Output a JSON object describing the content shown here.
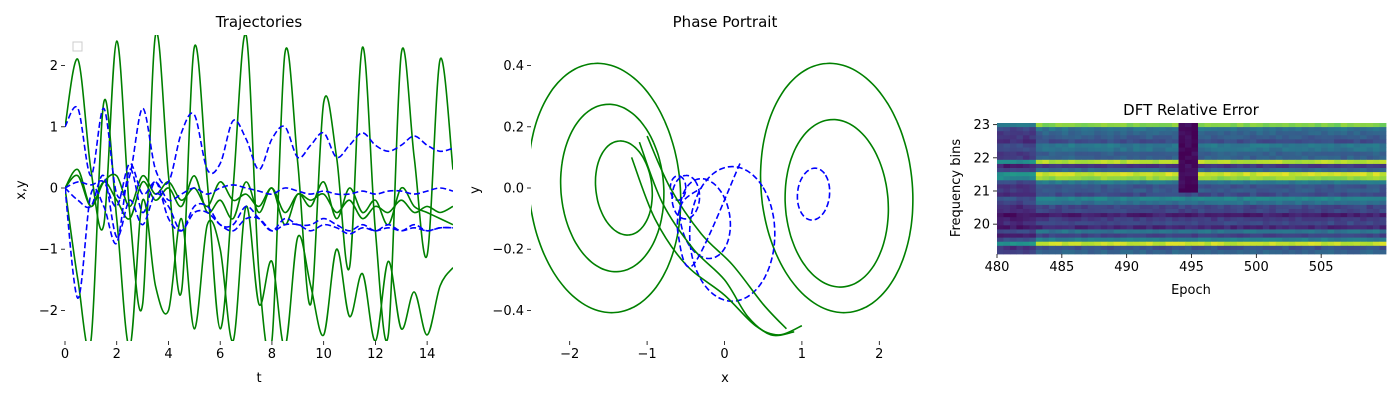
{
  "chart_data": [
    {
      "type": "line",
      "title": "Trajectories",
      "xlabel": "t",
      "ylabel": "x,y",
      "xlim": [
        0,
        15
      ],
      "ylim": [
        -2.5,
        2.5
      ],
      "xticks": [
        "0",
        "2",
        "4",
        "6",
        "8",
        "10",
        "12",
        "14"
      ],
      "yticks": [
        "−2",
        "−1",
        "0",
        "1",
        "2"
      ],
      "legend": "upper-left (empty)",
      "grid": false,
      "series_style": [
        {
          "color": "#008000",
          "dash": "solid",
          "count": 4
        },
        {
          "color": "#0000ff",
          "dash": "dashed",
          "count": 4
        }
      ],
      "series": [
        {
          "color": "#008000",
          "x": [
            0,
            0.5,
            1,
            1.5,
            2,
            2.5,
            3,
            3.5,
            4,
            4.5,
            5,
            5.5,
            6,
            6.5,
            7,
            7.5,
            8,
            8.5,
            9,
            9.5,
            10,
            10.5,
            11,
            11.5,
            12,
            12.5,
            13,
            13.5,
            14,
            14.5,
            15
          ],
          "values": [
            1.0,
            2.1,
            0.3,
            -0.6,
            2.4,
            -0.4,
            -1.9,
            2.5,
            0.2,
            -1.7,
            2.3,
            0.1,
            -2.3,
            0.0,
            2.5,
            -1.4,
            -2.5,
            2.2,
            0.4,
            -1.9,
            1.4,
            0.5,
            -1.3,
            2.3,
            -0.7,
            -2.4,
            2.2,
            0.5,
            -1.1,
            2.1,
            0.3
          ]
        },
        {
          "color": "#008000",
          "x": [
            0,
            0.5,
            1,
            1.5,
            2,
            2.5,
            3,
            3.5,
            4,
            4.5,
            5,
            5.5,
            6,
            6.5,
            7,
            7.5,
            8,
            8.5,
            9,
            9.5,
            10,
            10.5,
            11,
            11.5,
            12,
            12.5,
            13,
            13.5,
            14,
            14.5,
            15
          ],
          "values": [
            0.0,
            0.3,
            -0.3,
            0.1,
            -0.2,
            -0.5,
            0.1,
            -0.2,
            0.0,
            -0.3,
            0.2,
            -0.4,
            -0.2,
            -0.5,
            0.1,
            -0.4,
            0.0,
            -0.6,
            -0.1,
            -0.3,
            0.1,
            -0.5,
            0.0,
            -0.4,
            -0.2,
            -0.6,
            0.0,
            -0.3,
            -0.4,
            -0.5,
            -0.6
          ]
        },
        {
          "color": "#008000",
          "x": [
            0,
            0.5,
            1,
            1.5,
            2,
            2.5,
            3,
            3.5,
            4,
            4.5,
            5,
            5.5,
            6,
            6.5,
            7,
            7.5,
            8,
            8.5,
            9,
            9.5,
            10,
            10.5,
            11,
            11.5,
            12,
            12.5,
            13,
            13.5,
            14,
            14.5,
            15
          ],
          "values": [
            0.0,
            0.2,
            -0.3,
            0.1,
            0.2,
            -0.3,
            0.2,
            -0.1,
            0.1,
            -0.2,
            0.0,
            -0.3,
            0.1,
            -0.2,
            -0.1,
            -0.3,
            0.0,
            -0.4,
            -0.1,
            -0.2,
            -0.1,
            -0.4,
            -0.2,
            -0.5,
            -0.3,
            -0.4,
            -0.2,
            -0.4,
            -0.3,
            -0.4,
            -0.3
          ]
        },
        {
          "color": "#008000",
          "x": [
            0,
            0.5,
            1,
            1.5,
            2,
            2.5,
            3,
            3.5,
            4,
            4.5,
            5,
            5.5,
            6,
            6.5,
            7,
            7.5,
            8,
            8.5,
            9,
            9.5,
            10,
            10.5,
            11,
            11.5,
            12,
            12.5,
            13,
            13.5,
            14,
            14.5,
            15
          ],
          "values": [
            0.0,
            -1.5,
            -2.5,
            1.4,
            -0.5,
            -2.6,
            -0.2,
            -1.6,
            -2.0,
            -0.5,
            -2.3,
            -0.6,
            -1.0,
            -2.5,
            -0.3,
            -1.9,
            -1.2,
            -2.6,
            -0.8,
            -1.6,
            -2.4,
            -1.0,
            -2.1,
            -1.4,
            -2.5,
            -1.2,
            -2.3,
            -1.7,
            -2.4,
            -1.6,
            -1.3
          ]
        },
        {
          "color": "#0000ff",
          "x": [
            0,
            0.5,
            1,
            1.5,
            2,
            2.5,
            3,
            3.5,
            4,
            4.5,
            5,
            5.5,
            6,
            6.5,
            7,
            7.5,
            8,
            8.5,
            9,
            9.5,
            10,
            10.5,
            11,
            11.5,
            12,
            12.5,
            13,
            13.5,
            14,
            14.5,
            15
          ],
          "values": [
            1.0,
            1.3,
            0.2,
            1.3,
            -0.1,
            0.2,
            1.3,
            0.3,
            0.1,
            0.9,
            1.2,
            0.3,
            0.4,
            1.1,
            0.8,
            0.3,
            0.8,
            1.0,
            0.5,
            0.7,
            0.9,
            0.5,
            0.7,
            0.9,
            0.7,
            0.6,
            0.7,
            0.85,
            0.7,
            0.6,
            0.65
          ]
        },
        {
          "color": "#0000ff",
          "x": [
            0,
            0.5,
            1,
            1.5,
            2,
            2.5,
            3,
            3.5,
            4,
            4.5,
            5,
            5.5,
            6,
            6.5,
            7,
            7.5,
            8,
            8.5,
            9,
            9.5,
            10,
            10.5,
            11,
            11.5,
            12,
            12.5,
            13,
            13.5,
            14,
            14.5,
            15
          ],
          "values": [
            0.0,
            0.1,
            0.05,
            0.1,
            -0.3,
            0.4,
            -0.1,
            0.1,
            -0.2,
            -0.1,
            0.0,
            -0.1,
            0.0,
            0.05,
            0.0,
            -0.05,
            -0.1,
            0.0,
            -0.05,
            -0.1,
            -0.05,
            -0.1,
            -0.1,
            -0.05,
            -0.1,
            -0.05,
            -0.05,
            -0.1,
            -0.05,
            0.0,
            -0.05
          ]
        },
        {
          "color": "#0000ff",
          "x": [
            0,
            0.5,
            1,
            1.5,
            2,
            2.5,
            3,
            3.5,
            4,
            4.5,
            5,
            5.5,
            6,
            6.5,
            7,
            7.5,
            8,
            8.5,
            9,
            9.5,
            10,
            10.5,
            11,
            11.5,
            12,
            12.5,
            13,
            13.5,
            14,
            14.5,
            15
          ],
          "values": [
            0.0,
            -0.2,
            -0.3,
            0.2,
            -0.8,
            -0.2,
            -0.6,
            -0.1,
            -0.3,
            -0.7,
            -0.3,
            -0.3,
            -0.6,
            -0.6,
            -0.3,
            -0.5,
            -0.7,
            -0.5,
            -0.6,
            -0.6,
            -0.5,
            -0.6,
            -0.7,
            -0.6,
            -0.7,
            -0.6,
            -0.7,
            -0.6,
            -0.7,
            -0.65,
            -0.65
          ]
        },
        {
          "color": "#0000ff",
          "x": [
            0,
            0.5,
            1,
            1.5,
            2,
            2.5,
            3,
            3.5,
            4,
            4.5,
            5,
            5.5,
            6,
            6.5,
            7,
            7.5,
            8,
            8.5,
            9,
            9.5,
            10,
            10.5,
            11,
            11.5,
            12,
            12.5,
            13,
            13.5,
            14,
            14.5,
            15
          ],
          "values": [
            0.0,
            -1.8,
            -0.1,
            -0.3,
            -0.9,
            0.3,
            -0.4,
            0.1,
            -0.5,
            -0.7,
            -0.4,
            -0.4,
            -0.6,
            -0.7,
            -0.5,
            -0.5,
            -0.7,
            -0.6,
            -0.6,
            -0.7,
            -0.6,
            -0.65,
            -0.75,
            -0.65,
            -0.7,
            -0.65,
            -0.7,
            -0.65,
            -0.7,
            -0.65,
            -0.65
          ]
        }
      ]
    },
    {
      "type": "line",
      "title": "Phase Portrait",
      "xlabel": "x",
      "ylabel": "y",
      "xlim": [
        -2.5,
        2.5
      ],
      "ylim": [
        -0.5,
        0.5
      ],
      "xticks": [
        "−2",
        "−1",
        "0",
        "1",
        "2"
      ],
      "yticks": [
        "−0.4",
        "−0.2",
        "0.0",
        "0.2",
        "0.4"
      ],
      "grid": false,
      "curves": [
        {
          "color": "#008000",
          "dash": "solid",
          "kind": "ellipse",
          "cx": -1.55,
          "cy": 0.0,
          "rx": 0.95,
          "ry": 0.42,
          "angle": 35
        },
        {
          "color": "#008000",
          "dash": "solid",
          "kind": "ellipse",
          "cx": -1.45,
          "cy": 0.0,
          "rx": 0.65,
          "ry": 0.28,
          "angle": 35
        },
        {
          "color": "#008000",
          "dash": "solid",
          "kind": "ellipse",
          "cx": -1.3,
          "cy": 0.0,
          "rx": 0.35,
          "ry": 0.16,
          "angle": 35
        },
        {
          "color": "#008000",
          "dash": "solid",
          "kind": "ellipse",
          "cx": 1.45,
          "cy": 0.0,
          "rx": 0.95,
          "ry": 0.42,
          "angle": 35
        },
        {
          "color": "#008000",
          "dash": "solid",
          "kind": "ellipse",
          "cx": 1.45,
          "cy": -0.05,
          "rx": 0.65,
          "ry": 0.28,
          "angle": 35
        },
        {
          "color": "#0000ff",
          "dash": "dashed",
          "kind": "ellipse",
          "cx": 0.1,
          "cy": -0.15,
          "rx": 0.55,
          "ry": 0.22,
          "angle": 45
        },
        {
          "color": "#0000ff",
          "dash": "dashed",
          "kind": "ellipse",
          "cx": -0.25,
          "cy": -0.1,
          "rx": 0.3,
          "ry": 0.14,
          "angle": 45
        },
        {
          "color": "#0000ff",
          "dash": "dashed",
          "kind": "ellipse",
          "cx": -0.5,
          "cy": -0.03,
          "rx": 0.18,
          "ry": 0.07,
          "angle": 45
        },
        {
          "color": "#0000ff",
          "dash": "dashed",
          "kind": "ellipse",
          "cx": -0.6,
          "cy": 0.0,
          "rx": 0.1,
          "ry": 0.04,
          "angle": 45
        },
        {
          "color": "#0000ff",
          "dash": "dashed",
          "kind": "ellipse",
          "cx": 1.15,
          "cy": -0.02,
          "rx": 0.22,
          "ry": 0.08,
          "angle": 50
        }
      ],
      "connectors": [
        {
          "color": "#008000",
          "x": [
            -1.2,
            -0.9,
            -0.5,
            0.0,
            0.4,
            0.7,
            1.0
          ],
          "values": [
            0.1,
            -0.1,
            -0.25,
            -0.35,
            -0.45,
            -0.48,
            -0.45
          ]
        },
        {
          "color": "#008000",
          "x": [
            -1.1,
            -0.8,
            -0.4,
            0.0,
            0.3,
            0.6,
            0.9
          ],
          "values": [
            0.15,
            -0.05,
            -0.2,
            -0.3,
            -0.42,
            -0.48,
            -0.47
          ]
        },
        {
          "color": "#008000",
          "x": [
            -1.0,
            -0.7,
            -0.3,
            0.1,
            0.5,
            0.8
          ],
          "values": [
            0.17,
            0.0,
            -0.15,
            -0.25,
            -0.38,
            -0.46
          ]
        },
        {
          "color": "#0000ff",
          "x": [
            0.2,
            -0.4,
            -0.6,
            -0.55,
            -0.3
          ],
          "values": [
            0.08,
            -0.25,
            -0.15,
            -0.05,
            0.0
          ]
        }
      ]
    },
    {
      "type": "heatmap",
      "title": "DFT Relative Error",
      "xlabel": "Epoch",
      "ylabel": "Frequency bins",
      "xlim": [
        480,
        510
      ],
      "ylim": [
        19.1,
        23.05
      ],
      "xticks": [
        "480",
        "485",
        "490",
        "495",
        "500",
        "505"
      ],
      "yticks": [
        "20",
        "21",
        "22",
        "23"
      ],
      "colormap": "viridis",
      "rows": 32,
      "cols": 60,
      "bright_row_bins": [
        22.95,
        21.85,
        21.45,
        19.45
      ],
      "dark_column_epoch": 494.7
    }
  ]
}
